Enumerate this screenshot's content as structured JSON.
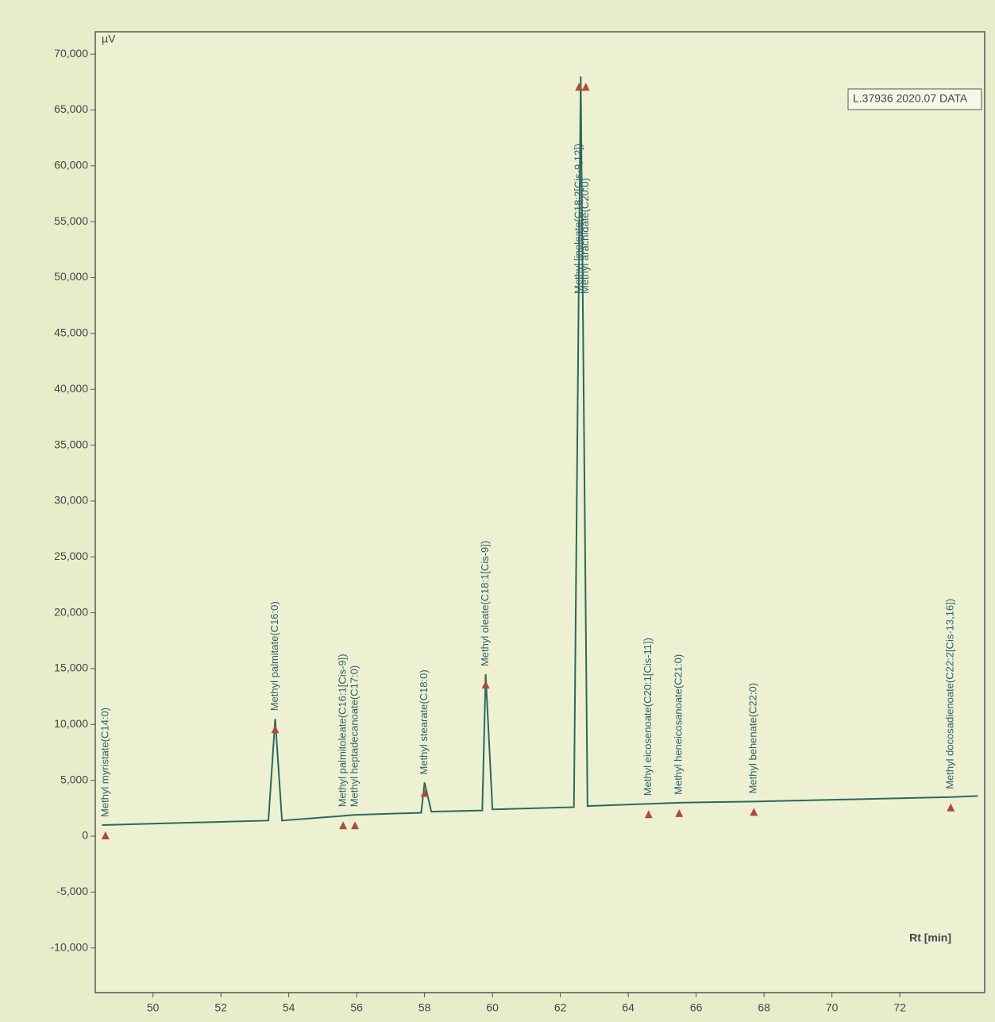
{
  "chart_data": {
    "type": "line",
    "y_unit": "µV",
    "x_label": "Rt [min]",
    "xlim": [
      48.3,
      74.5
    ],
    "xticks": [
      50,
      52,
      54,
      56,
      58,
      60,
      62,
      64,
      66,
      68,
      70,
      72
    ],
    "ylim": [
      -14000,
      72000
    ],
    "yticks": [
      {
        "value": -10000,
        "label": "-10,000"
      },
      {
        "value": -5000,
        "label": "-5,000"
      },
      0,
      {
        "value": 5000,
        "label": "5,000"
      },
      {
        "value": 10000,
        "label": "10,000"
      },
      {
        "value": 15000,
        "label": "15,000"
      },
      {
        "value": 20000,
        "label": "20,000"
      },
      {
        "value": 25000,
        "label": "25,000"
      },
      {
        "value": 30000,
        "label": "30,000"
      },
      {
        "value": 35000,
        "label": "35,000"
      },
      {
        "value": 40000,
        "label": "40,000"
      },
      {
        "value": 45000,
        "label": "45,000"
      },
      {
        "value": 50000,
        "label": "50,000"
      },
      {
        "value": 55000,
        "label": "55,000"
      },
      {
        "value": 60000,
        "label": "60,000"
      },
      {
        "value": 65000,
        "label": "65,000"
      },
      {
        "value": 70000,
        "label": "70,000"
      }
    ],
    "x": [
      48.5,
      53.4,
      53.6,
      53.8,
      55.5,
      55.9,
      57.9,
      58.0,
      58.2,
      59.7,
      59.8,
      60.0,
      62.4,
      62.6,
      62.8,
      64.6,
      65.5,
      67.7,
      73.5,
      74.3
    ],
    "series": [
      {
        "name": "L.37936 2020.07 DATA",
        "color": "#2a6a5c",
        "values": [
          1000,
          1400,
          10500,
          1400,
          1800,
          1900,
          2100,
          4800,
          2200,
          2300,
          14500,
          2400,
          2600,
          68000,
          2700,
          2900,
          3000,
          3100,
          3500,
          3600
        ]
      }
    ],
    "peak_labels": [
      {
        "text": "Methyl myristate(C14:0)",
        "x": 48.6
      },
      {
        "text": "Methyl palmitate(C16:0)",
        "x": 53.6
      },
      {
        "text": "Methyl palmitoleate(C16:1[Cis-9])",
        "x": 55.6
      },
      {
        "text": "Methyl heptadecanoate(C17:0)",
        "x": 55.95
      },
      {
        "text": "Methyl stearate(C18:0)",
        "x": 58.0
      },
      {
        "text": "Methyl oleate(C18:1[Cis-9])",
        "x": 59.8
      },
      {
        "text": "Methyl linoleate(C18:2[Cis-9,12])",
        "x": 62.55
      },
      {
        "text": "Methyl arachidate(C20:0)",
        "x": 62.75
      },
      {
        "text": "Methyl eicosenoate(C20:1[Cis-11])",
        "x": 64.6
      },
      {
        "text": "Methyl heneicosanoate(C21:0)",
        "x": 65.5
      },
      {
        "text": "Methyl behenate(C22:0)",
        "x": 67.7
      },
      {
        "text": "Methyl docosadienoate(C22:2[Cis-13,16])",
        "x": 73.5
      }
    ]
  }
}
